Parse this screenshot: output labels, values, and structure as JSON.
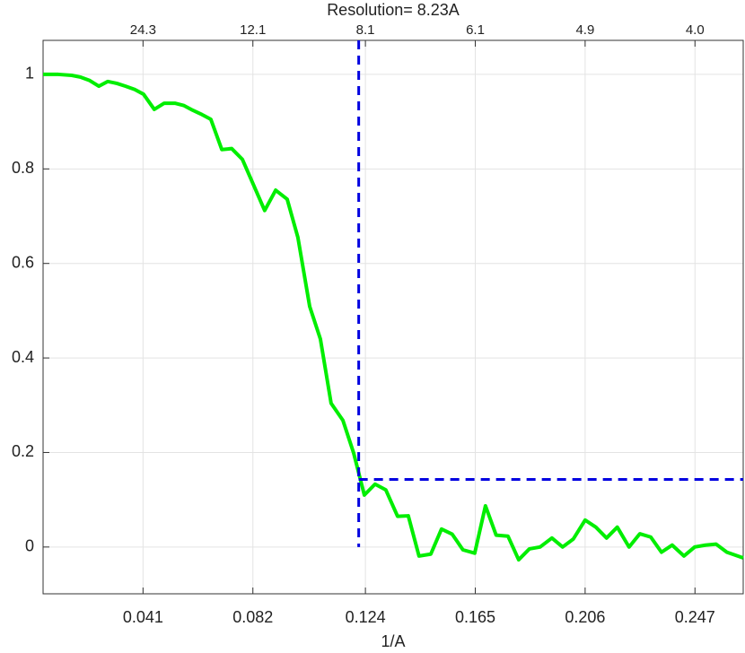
{
  "chart_data": {
    "type": "line",
    "title": "Resolution= 8.23A",
    "xlabel": "1/A",
    "xlim": [
      0.0037,
      0.265
    ],
    "ylim": [
      -0.099,
      1.072
    ],
    "xticks": [
      0.041,
      0.082,
      0.124,
      0.165,
      0.206,
      0.247
    ],
    "x2ticks": [
      {
        "value": 0.041,
        "label": "24.3"
      },
      {
        "value": 0.082,
        "label": "12.1"
      },
      {
        "value": 0.124,
        "label": "8.1"
      },
      {
        "value": 0.165,
        "label": "6.1"
      },
      {
        "value": 0.206,
        "label": "4.9"
      },
      {
        "value": 0.247,
        "label": "4.0"
      }
    ],
    "yticks": [
      0,
      0.2,
      0.4,
      0.6,
      0.8,
      1
    ],
    "grid": true,
    "x": [
      0.0037,
      0.0094,
      0.0144,
      0.0178,
      0.0211,
      0.0245,
      0.0278,
      0.0312,
      0.0345,
      0.0379,
      0.0412,
      0.0452,
      0.0489,
      0.0529,
      0.0563,
      0.0596,
      0.063,
      0.0663,
      0.0704,
      0.0741,
      0.0781,
      0.0821,
      0.0864,
      0.0905,
      0.0948,
      0.0988,
      0.1032,
      0.1072,
      0.1112,
      0.1156,
      0.1196,
      0.1236,
      0.1276,
      0.1316,
      0.136,
      0.14,
      0.144,
      0.1484,
      0.1524,
      0.1564,
      0.1604,
      0.1648,
      0.1688,
      0.1728,
      0.1772,
      0.1812,
      0.1852,
      0.1892,
      0.1936,
      0.1976,
      0.2016,
      0.206,
      0.21,
      0.214,
      0.218,
      0.2224,
      0.2264,
      0.2305,
      0.2345,
      0.2385,
      0.2429,
      0.2469,
      0.2509,
      0.2549,
      0.2589,
      0.265
    ],
    "series": [
      {
        "color": "#00ee00",
        "values": [
          1.0,
          1.0,
          0.998,
          0.994,
          0.987,
          0.975,
          0.985,
          0.981,
          0.975,
          0.968,
          0.958,
          0.926,
          0.939,
          0.939,
          0.934,
          0.924,
          0.915,
          0.905,
          0.841,
          0.843,
          0.82,
          0.768,
          0.712,
          0.755,
          0.736,
          0.655,
          0.509,
          0.44,
          0.304,
          0.268,
          0.199,
          0.11,
          0.133,
          0.121,
          0.065,
          0.066,
          -0.019,
          -0.015,
          0.038,
          0.027,
          -0.006,
          -0.013,
          0.087,
          0.025,
          0.023,
          -0.027,
          -0.004,
          0.0,
          0.019,
          0.0,
          0.017,
          0.057,
          0.042,
          0.019,
          0.042,
          0.0,
          0.028,
          0.021,
          -0.011,
          0.004,
          -0.019,
          0.0,
          0.004,
          0.006,
          -0.011,
          -0.023
        ]
      }
    ],
    "threshold_x": 0.1215,
    "threshold_y": 0.143,
    "threshold_color": "#0000e0"
  }
}
